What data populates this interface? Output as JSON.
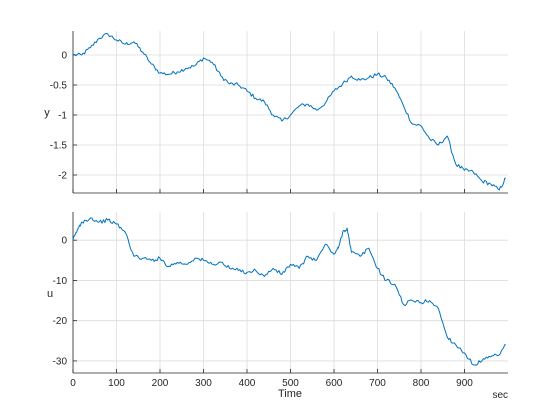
{
  "chart_data": [
    {
      "type": "line",
      "ylabel": "y",
      "xlim": [
        0,
        1000
      ],
      "ylim": [
        -2.3,
        0.4
      ],
      "grid": true,
      "color": "#0072BD",
      "xticks": [
        0,
        100,
        200,
        300,
        400,
        500,
        600,
        700,
        800,
        900
      ],
      "yticks": [
        0,
        -0.5,
        -1,
        -1.5,
        -2
      ],
      "ytick_labels": [
        "0",
        "-0.5",
        "-1",
        "-1.5",
        "-2"
      ],
      "x": [
        0,
        20,
        40,
        60,
        80,
        100,
        120,
        140,
        160,
        180,
        200,
        220,
        240,
        260,
        280,
        300,
        320,
        340,
        360,
        380,
        400,
        420,
        440,
        460,
        480,
        500,
        520,
        540,
        560,
        580,
        600,
        620,
        640,
        660,
        680,
        700,
        720,
        740,
        760,
        780,
        800,
        820,
        840,
        860,
        880,
        900,
        920,
        940,
        960,
        980,
        995
      ],
      "y": [
        0.0,
        0.0,
        0.12,
        0.28,
        0.35,
        0.25,
        0.18,
        0.22,
        0.05,
        -0.15,
        -0.3,
        -0.32,
        -0.28,
        -0.22,
        -0.18,
        -0.05,
        -0.12,
        -0.35,
        -0.48,
        -0.5,
        -0.6,
        -0.72,
        -0.78,
        -1.0,
        -1.1,
        -1.0,
        -0.85,
        -0.82,
        -0.92,
        -0.8,
        -0.6,
        -0.48,
        -0.35,
        -0.42,
        -0.38,
        -0.32,
        -0.38,
        -0.55,
        -0.85,
        -1.15,
        -1.18,
        -1.4,
        -1.5,
        -1.35,
        -1.82,
        -1.92,
        -1.95,
        -2.1,
        -2.15,
        -2.25,
        -2.05
      ]
    },
    {
      "type": "line",
      "ylabel": "u",
      "xlabel": "Time",
      "xunit": "sec",
      "xlim": [
        0,
        1000
      ],
      "ylim": [
        -33,
        7
      ],
      "grid": true,
      "color": "#0072BD",
      "xticks": [
        0,
        100,
        200,
        300,
        400,
        500,
        600,
        700,
        800,
        900
      ],
      "xtick_labels": [
        "0",
        "100",
        "200",
        "300",
        "400",
        "500",
        "600",
        "700",
        "800",
        "900"
      ],
      "yticks": [
        0,
        -10,
        -20,
        -30
      ],
      "ytick_labels": [
        "0",
        "-10",
        "-20",
        "-30"
      ],
      "x": [
        0,
        10,
        20,
        40,
        60,
        80,
        100,
        120,
        140,
        160,
        180,
        200,
        220,
        240,
        260,
        280,
        300,
        320,
        340,
        360,
        380,
        400,
        420,
        440,
        460,
        480,
        500,
        520,
        540,
        560,
        580,
        600,
        610,
        620,
        630,
        640,
        660,
        680,
        700,
        720,
        740,
        760,
        780,
        800,
        820,
        840,
        860,
        880,
        900,
        920,
        940,
        960,
        980,
        995
      ],
      "y": [
        0.0,
        2.5,
        4.5,
        5.5,
        4.5,
        5.0,
        4.0,
        2.0,
        -4.0,
        -4.5,
        -5.0,
        -4.5,
        -6.5,
        -5.5,
        -6.0,
        -4.5,
        -5.0,
        -6.0,
        -5.5,
        -7.0,
        -7.5,
        -8.0,
        -7.5,
        -9.0,
        -7.0,
        -8.5,
        -6.0,
        -7.0,
        -4.0,
        -5.0,
        -1.0,
        -3.5,
        -2.0,
        2.0,
        3.0,
        -3.0,
        -4.0,
        -2.0,
        -7.0,
        -10.0,
        -11.0,
        -16.0,
        -15.0,
        -15.5,
        -15.0,
        -17.0,
        -24.0,
        -26.0,
        -28.0,
        -31.0,
        -30.0,
        -29.0,
        -28.5,
        -26.0
      ]
    }
  ]
}
